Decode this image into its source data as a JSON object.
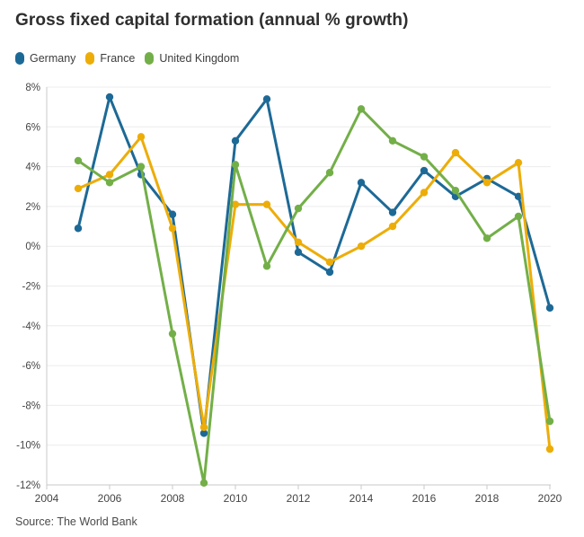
{
  "title": "Gross fixed capital formation (annual % growth)",
  "source": "Source: The World Bank",
  "colors": {
    "germany": "#1D6996",
    "france": "#EDAD08",
    "united_kingdom": "#73AF48",
    "grid": "#ececec",
    "axis": "#c9c9c9",
    "tick_text": "#454545",
    "title_text": "#2e2e2e"
  },
  "legend": [
    {
      "label": "Germany",
      "color": "#1D6996"
    },
    {
      "label": "France",
      "color": "#EDAD08"
    },
    {
      "label": "United Kingdom",
      "color": "#73AF48"
    }
  ],
  "chart_data": {
    "type": "line",
    "title": "Gross fixed capital formation (annual % growth)",
    "xlabel": "",
    "ylabel": "",
    "x": [
      2005,
      2006,
      2007,
      2008,
      2009,
      2010,
      2011,
      2012,
      2013,
      2014,
      2015,
      2016,
      2017,
      2018,
      2019,
      2020
    ],
    "series": [
      {
        "name": "Germany",
        "color": "#1D6996",
        "values": [
          0.9,
          7.5,
          3.6,
          1.6,
          -9.4,
          5.3,
          7.4,
          -0.3,
          -1.3,
          3.2,
          1.7,
          3.8,
          2.5,
          3.4,
          2.5,
          -3.1
        ]
      },
      {
        "name": "France",
        "color": "#EDAD08",
        "values": [
          2.9,
          3.6,
          5.5,
          0.9,
          -9.1,
          2.1,
          2.1,
          0.2,
          -0.8,
          0.0,
          1.0,
          2.7,
          4.7,
          3.2,
          4.2,
          -10.2
        ]
      },
      {
        "name": "United Kingdom",
        "color": "#73AF48",
        "values": [
          4.3,
          3.2,
          4.0,
          -4.4,
          -11.9,
          4.1,
          -1.0,
          1.9,
          3.7,
          6.9,
          5.3,
          4.5,
          2.8,
          0.4,
          1.5,
          -8.8
        ]
      }
    ],
    "ylim": [
      -12,
      8
    ],
    "ytick_step": 2,
    "ytick_suffix": "%",
    "xticks": [
      2004,
      2006,
      2008,
      2010,
      2012,
      2014,
      2016,
      2018,
      2020
    ],
    "xlim": [
      2004,
      2020
    ],
    "grid": true,
    "legend_position": "top-left"
  }
}
